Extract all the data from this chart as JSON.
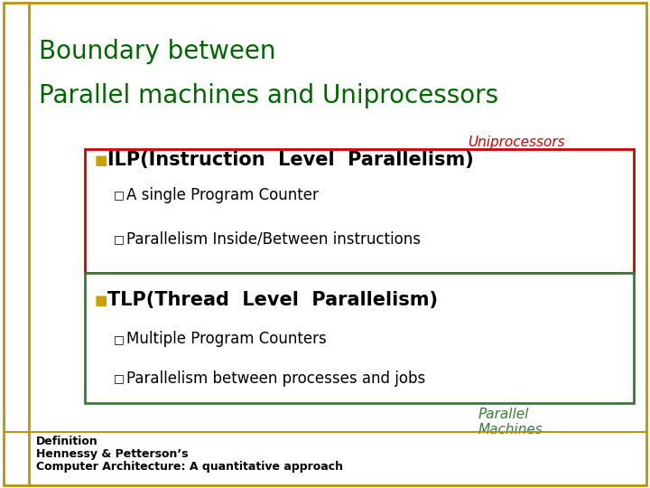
{
  "bg_color": "#ffffff",
  "border_color_outer": "#b8960c",
  "title_line1": "Boundary between",
  "title_line2": "Parallel machines and Uniprocessors",
  "title_color": "#006400",
  "title_fontsize": 20,
  "uniprocessors_label": "Uniprocessors",
  "uniprocessors_color": "#cc0000",
  "uniprocessors_fontsize": 11,
  "parallel_label": "Parallel\nMachines",
  "parallel_color": "#3a7a3a",
  "parallel_fontsize": 11,
  "box1_color": "#cc0000",
  "box2_color": "#3a7a3a",
  "bullet_color": "#c8a000",
  "ilp_title": "ILP(Instruction  Level  Parallelism)",
  "ilp_sub1": "A single Program Counter",
  "ilp_sub2": "Parallelism Inside/Between instructions",
  "tlp_title": "TLP(Thread  Level  Parallelism)",
  "tlp_sub1": "Multiple Program Counters",
  "tlp_sub2": "Parallelism between processes and jobs",
  "main_fontsize": 15,
  "sub_fontsize": 12,
  "def_line1": "Definition",
  "def_line2": "Hennessy & Petterson’s",
  "def_line3": "Computer Architecture: A quantitative approach",
  "def_fontsize": 9
}
